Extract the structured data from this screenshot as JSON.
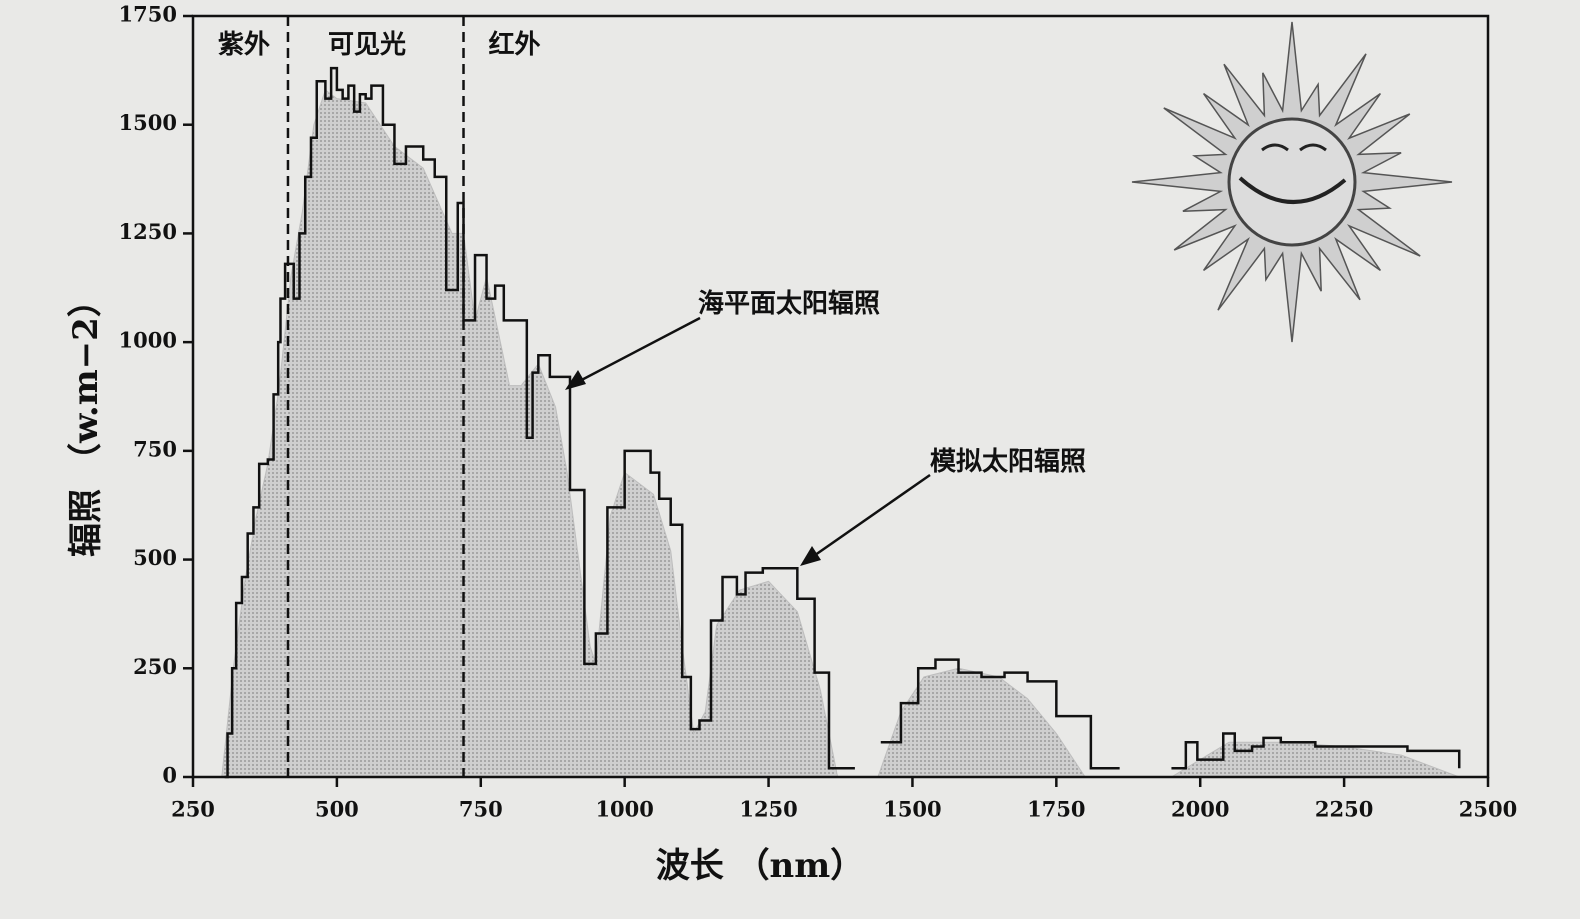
{
  "chart_data": {
    "type": "step-area",
    "xlabel": "波长 （nm）",
    "ylabel": "辐照 （w.m−2）",
    "xlim": [
      250,
      2500
    ],
    "xticks": [
      250,
      500,
      750,
      1000,
      1250,
      1500,
      1750,
      2000,
      2250,
      2500
    ],
    "ylim": [
      0,
      1750
    ],
    "yticks": [
      0,
      250,
      500,
      750,
      1000,
      1250,
      1500,
      1750
    ],
    "region_bounds": [
      415,
      720
    ],
    "region_labels": [
      "紫外",
      "可见光",
      "红外"
    ],
    "series": [
      {
        "name": "海平面太阳辐照",
        "style": "area",
        "color": "#bdbdbd",
        "x": [
          300,
          320,
          340,
          360,
          380,
          400,
          420,
          440,
          460,
          480,
          500,
          550,
          600,
          650,
          700,
          720,
          740,
          760,
          800,
          820,
          850,
          880,
          900,
          920,
          940,
          950,
          975,
          1000,
          1050,
          1080,
          1100,
          1120,
          1140,
          1160,
          1200,
          1250,
          1300,
          1340,
          1370,
          1400,
          1440,
          1480,
          1520,
          1580,
          1650,
          1700,
          1750,
          1800,
          1850,
          1950,
          2000,
          2050,
          2150,
          2250,
          2350,
          2450
        ],
        "values": [
          0,
          250,
          450,
          600,
          720,
          900,
          1150,
          1300,
          1500,
          1580,
          1560,
          1550,
          1450,
          1400,
          1250,
          1250,
          1050,
          1150,
          900,
          900,
          950,
          850,
          700,
          500,
          300,
          260,
          600,
          700,
          650,
          520,
          300,
          100,
          150,
          350,
          430,
          450,
          380,
          200,
          0,
          null,
          0,
          150,
          230,
          250,
          230,
          180,
          100,
          0,
          null,
          0,
          40,
          80,
          80,
          70,
          50,
          0
        ]
      },
      {
        "name": "模拟太阳辐照",
        "style": "step",
        "color": "#111111",
        "x": [
          305,
          310,
          318,
          325,
          335,
          345,
          355,
          365,
          380,
          390,
          398,
          402,
          410,
          425,
          435,
          445,
          455,
          465,
          480,
          490,
          500,
          510,
          520,
          530,
          540,
          550,
          560,
          580,
          600,
          620,
          650,
          670,
          690,
          710,
          720,
          740,
          760,
          775,
          790,
          830,
          840,
          850,
          870,
          905,
          930,
          950,
          970,
          1000,
          1045,
          1060,
          1080,
          1100,
          1115,
          1130,
          1150,
          1170,
          1195,
          1210,
          1240,
          1300,
          1330,
          1355,
          1400,
          1445,
          1480,
          1510,
          1540,
          1580,
          1620,
          1660,
          1700,
          1750,
          1810,
          1860,
          1950,
          1975,
          1995,
          2040,
          2060,
          2090,
          2110,
          2140,
          2200,
          2260,
          2360,
          2450
        ],
        "values": [
          0,
          100,
          250,
          400,
          460,
          560,
          620,
          720,
          730,
          880,
          1000,
          1100,
          1180,
          1100,
          1250,
          1380,
          1470,
          1600,
          1560,
          1630,
          1580,
          1560,
          1590,
          1530,
          1570,
          1560,
          1590,
          1500,
          1410,
          1450,
          1420,
          1380,
          1120,
          1320,
          1050,
          1200,
          1100,
          1130,
          1050,
          780,
          930,
          970,
          920,
          660,
          260,
          330,
          620,
          750,
          700,
          640,
          580,
          230,
          110,
          130,
          360,
          460,
          420,
          470,
          480,
          410,
          240,
          20,
          null,
          80,
          170,
          250,
          270,
          240,
          230,
          240,
          220,
          140,
          20,
          null,
          20,
          80,
          40,
          100,
          60,
          70,
          90,
          80,
          70,
          70,
          60,
          20
        ]
      }
    ],
    "annotations": [
      {
        "text": "海平面太阳辐照"
      },
      {
        "text": "模拟太阳辐照"
      }
    ]
  }
}
